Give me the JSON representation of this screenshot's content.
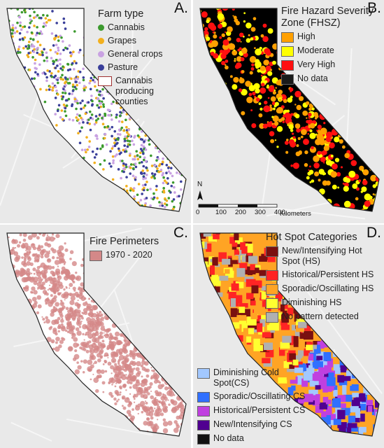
{
  "panels": [
    {
      "label": "A.",
      "legend_groups": [
        {
          "title": "Farm type",
          "items": [
            {
              "name": "Cannabis",
              "color": "#3c9a2e",
              "swatch": "dot"
            },
            {
              "name": "Grapes",
              "color": "#f2b01e",
              "swatch": "dot"
            },
            {
              "name": "General crops",
              "color": "#c9a2e2",
              "swatch": "dot"
            },
            {
              "name": "Pasture",
              "color": "#3a3f9a",
              "swatch": "dot"
            },
            {
              "name": "Cannabis producing counties",
              "color": "#a03030",
              "swatch": "outline"
            }
          ]
        }
      ]
    },
    {
      "label": "B.",
      "legend_groups": [
        {
          "title": "Fire Hazard Severity Zone (FHSZ)",
          "items": [
            {
              "name": "High",
              "color": "#ffa000",
              "swatch": "box"
            },
            {
              "name": "Moderate",
              "color": "#ffff00",
              "swatch": "box"
            },
            {
              "name": "Very High",
              "color": "#ff1010",
              "swatch": "box"
            },
            {
              "name": "No data",
              "color": "#1a1a1a",
              "swatch": "box"
            }
          ]
        }
      ],
      "north": "N",
      "scale_ticks": [
        "0",
        "100",
        "200",
        "300",
        "400"
      ],
      "scale_unit": "Kilometers"
    },
    {
      "label": "C.",
      "legend_groups": [
        {
          "title": "Fire Perimeters",
          "items": [
            {
              "name": "1970 - 2020",
              "color": "#d48888",
              "swatch": "box"
            }
          ]
        }
      ]
    },
    {
      "label": "D.",
      "legend_groups": [
        {
          "title": "Hot Spot Categories",
          "items": [
            {
              "name": "New/Intensifying Hot Spot (HS)",
              "color": "#7a1010",
              "swatch": "box"
            },
            {
              "name": "Historical/Persistent HS",
              "color": "#ff2424",
              "swatch": "box"
            },
            {
              "name": "Sporadic/Oscillating HS",
              "color": "#ffa424",
              "swatch": "box"
            },
            {
              "name": "Diminishing HS",
              "color": "#ffff30",
              "swatch": "box"
            },
            {
              "name": "No pattern detected",
              "color": "#b0b0b0",
              "swatch": "box"
            }
          ]
        },
        {
          "items": [
            {
              "name": "Diminishing Cold Spot(CS)",
              "color": "#a2c8ff",
              "swatch": "box"
            },
            {
              "name": "Sporadic/Oscillating CS",
              "color": "#3070ff",
              "swatch": "box"
            },
            {
              "name": "Historical/Persistent CS",
              "color": "#c040e0",
              "swatch": "box"
            },
            {
              "name": "New/Intensifying CS",
              "color": "#500090",
              "swatch": "box"
            },
            {
              "name": "No data",
              "color": "#111111",
              "swatch": "box"
            }
          ]
        }
      ]
    }
  ]
}
